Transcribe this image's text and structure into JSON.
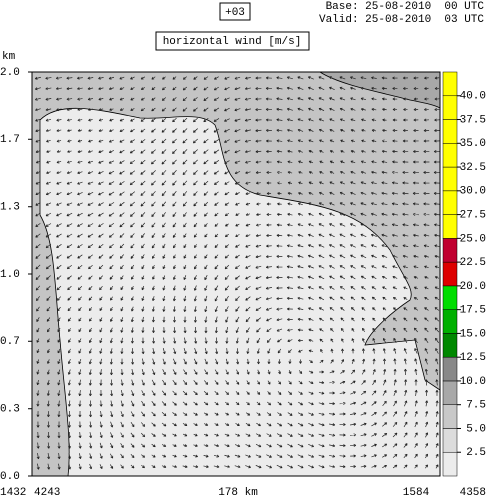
{
  "header": {
    "lead": "+03",
    "base": "Base: 25-08-2010  00 UTC",
    "valid": "Valid: 25-08-2010  03 UTC"
  },
  "chart_data": {
    "type": "vector-field",
    "title": "horizontal wind [m/s]",
    "y_label": "km",
    "ylim": [
      0,
      2
    ],
    "yticks": [
      {
        "value": 0,
        "label": "0.0"
      },
      {
        "value": 0.333,
        "label": "0.3"
      },
      {
        "value": 0.667,
        "label": "0.7"
      },
      {
        "value": 1,
        "label": "1.0"
      },
      {
        "value": 1.333,
        "label": "1.3"
      },
      {
        "value": 1.667,
        "label": "1.7"
      },
      {
        "value": 2,
        "label": "2.0"
      }
    ],
    "x_labels": {
      "left": [
        "1432",
        "4243"
      ],
      "center": "178 km",
      "right": [
        "1584",
        "4358"
      ]
    },
    "colorbar": {
      "bins": [
        0,
        2.5,
        5,
        7.5,
        10,
        12.5,
        15,
        17.5,
        20,
        22.5,
        25,
        27.5,
        30,
        32.5,
        35,
        37.5,
        40,
        42.5
      ],
      "colors": [
        "#ececec",
        "#dcdcdc",
        "#c8c8c8",
        "#a8a8a8",
        "#888888",
        "#008800",
        "#00b000",
        "#00dd00",
        "#dd0000",
        "#c00030",
        "#ffff00",
        "#ffff00",
        "#ffff00",
        "#ffff00",
        "#ffff00",
        "#ffff00",
        "#ffff00"
      ],
      "ticks": [
        2.5,
        {
          "value": 5,
          "label": "5.0"
        },
        7.5,
        {
          "value": 10,
          "label": "10.0"
        },
        12.5,
        {
          "value": 15,
          "label": "15.0"
        },
        17.5,
        {
          "value": 20,
          "label": "20.0"
        },
        22.5,
        {
          "value": 25,
          "label": "25.0"
        },
        27.5,
        {
          "value": 30,
          "label": "30.0"
        },
        32.5,
        {
          "value": 35,
          "label": "35.0"
        },
        37.5,
        {
          "value": 40,
          "label": "40.0"
        }
      ]
    }
  }
}
